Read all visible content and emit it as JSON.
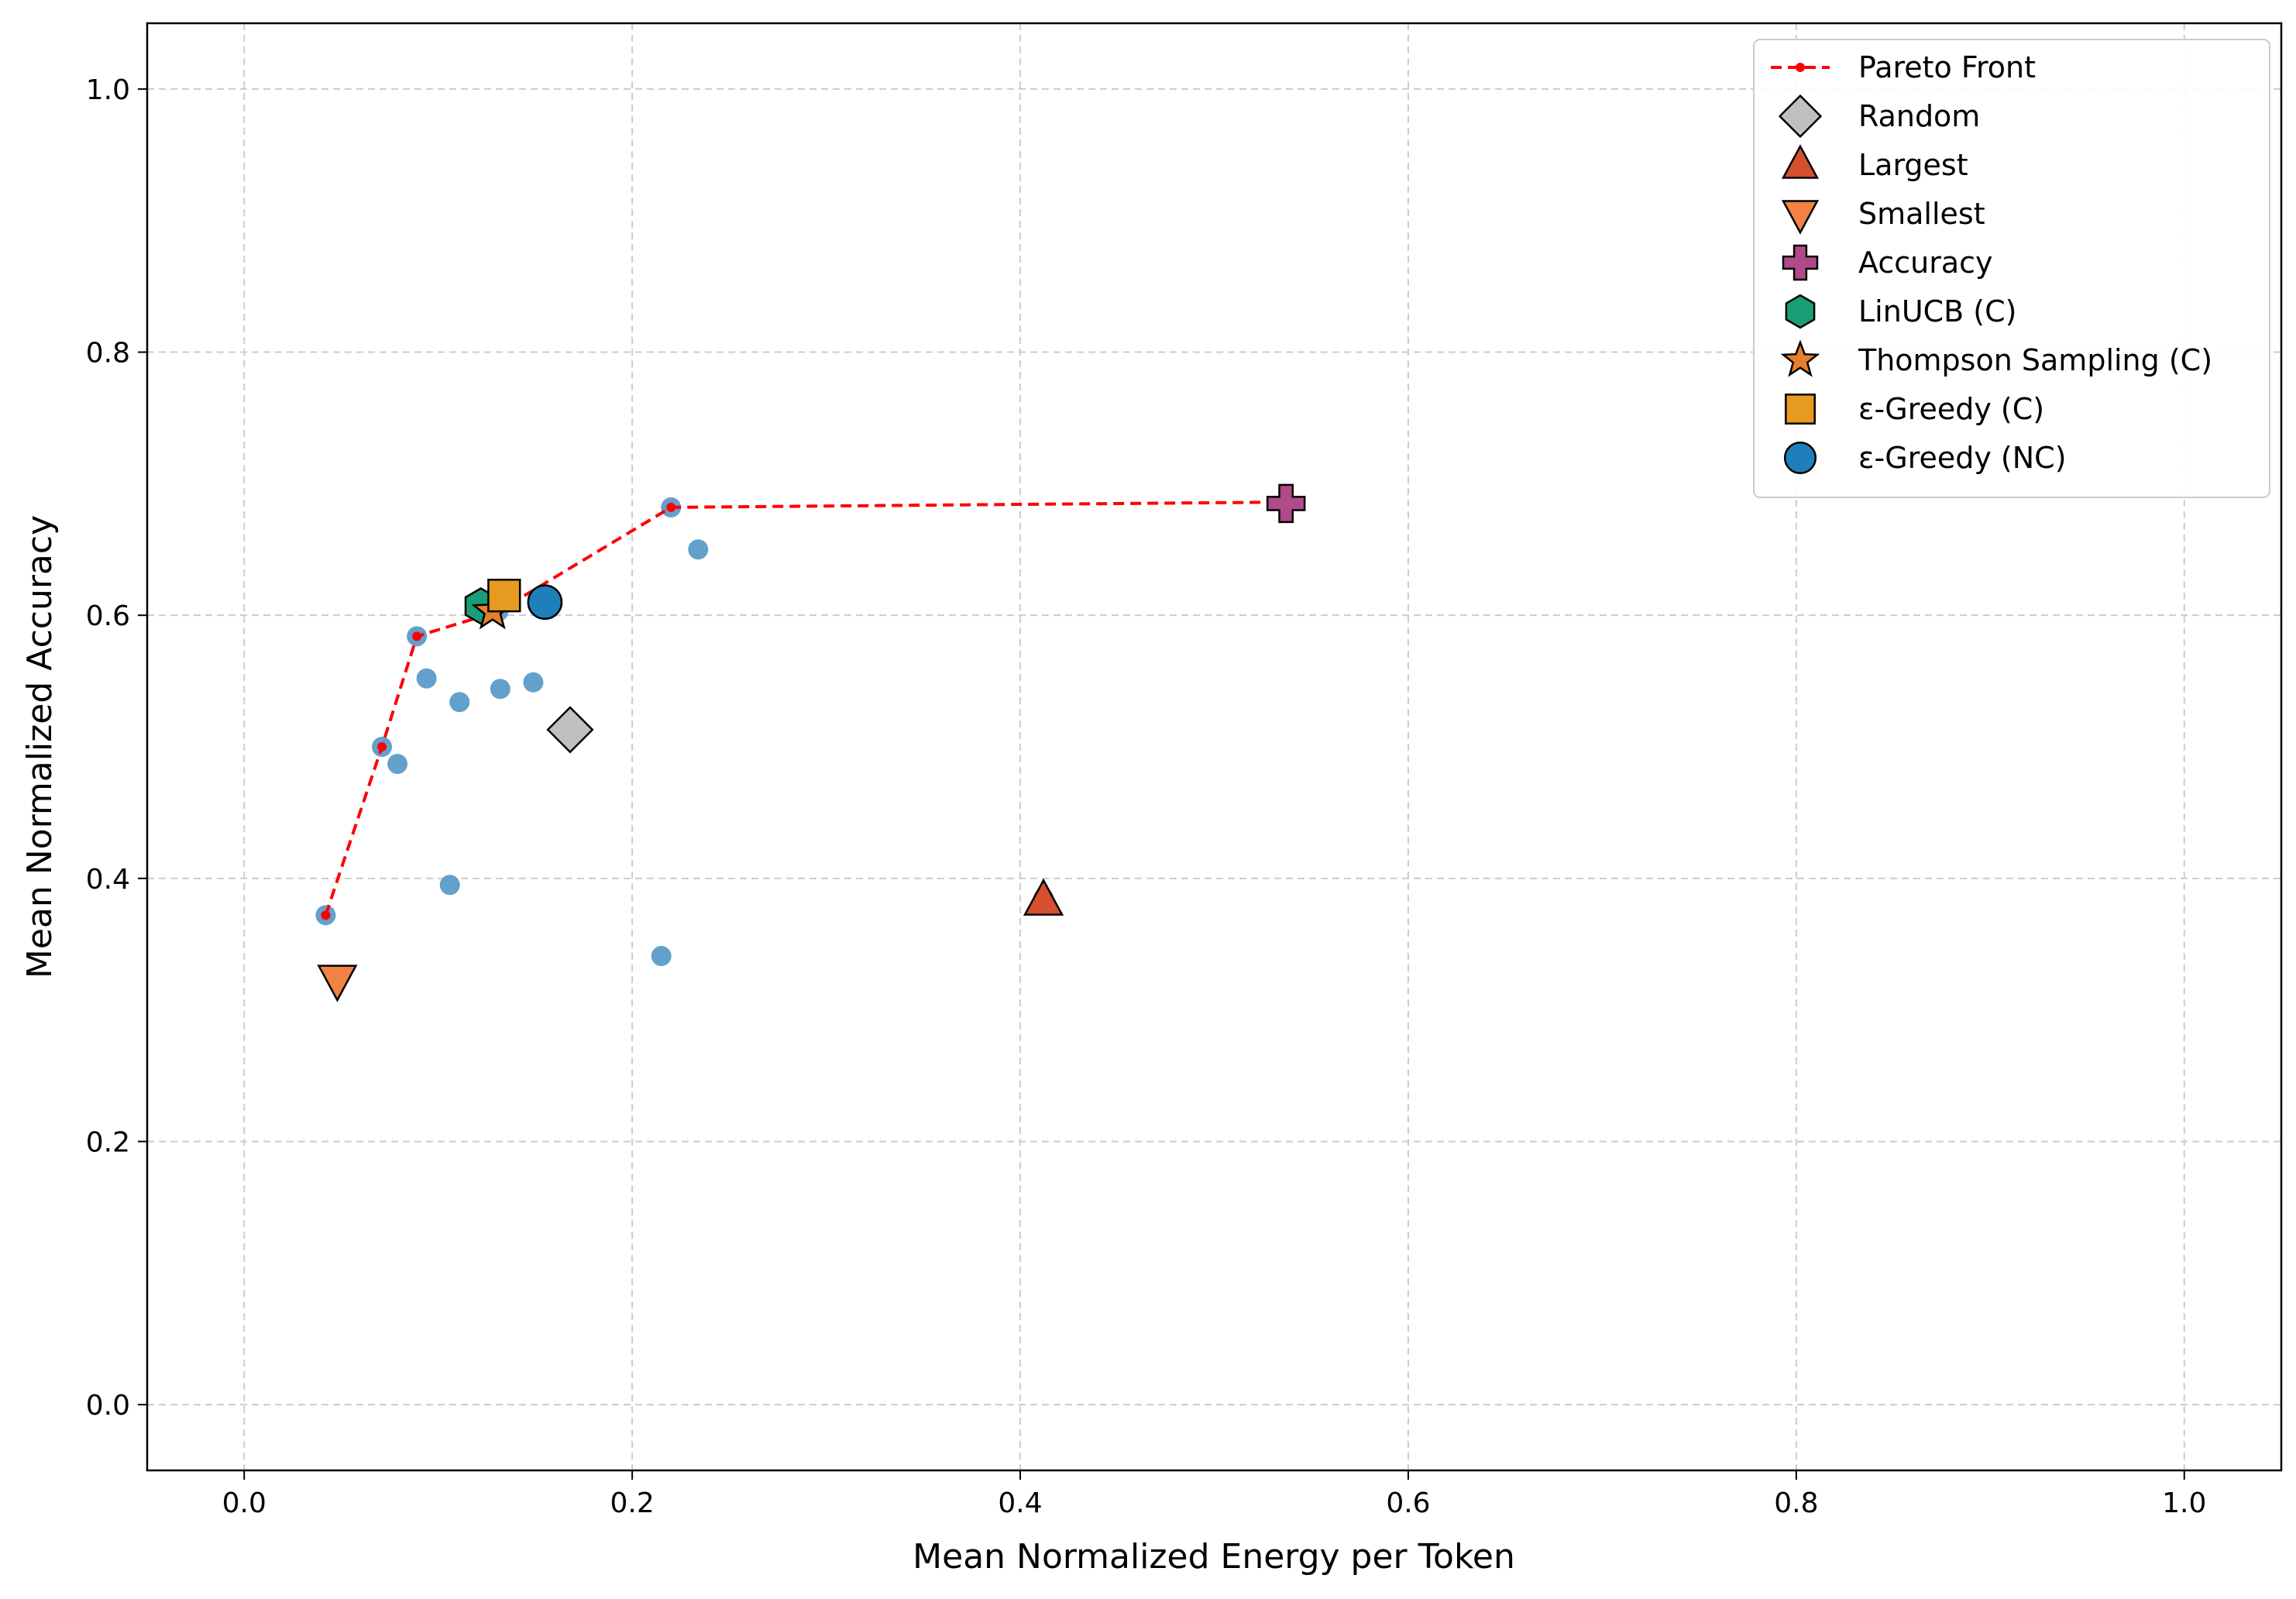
{
  "chart_data": {
    "type": "scatter",
    "title": "",
    "xlabel": "Mean Normalized Energy per Token",
    "ylabel": "Mean Normalized Accuracy",
    "xlim": [
      -0.05,
      1.05
    ],
    "ylim": [
      -0.05,
      1.05
    ],
    "xticks": [
      "0.0",
      "0.2",
      "0.4",
      "0.6",
      "0.8",
      "1.0"
    ],
    "yticks": [
      "0.0",
      "0.2",
      "0.4",
      "0.6",
      "0.8",
      "1.0"
    ],
    "grid": true,
    "legend_position": "top-right",
    "background_points": {
      "color": "#5b9bc9",
      "points": [
        [
          0.042,
          0.372
        ],
        [
          0.048,
          0.322
        ],
        [
          0.071,
          0.5
        ],
        [
          0.079,
          0.487
        ],
        [
          0.089,
          0.584
        ],
        [
          0.094,
          0.552
        ],
        [
          0.106,
          0.395
        ],
        [
          0.111,
          0.534
        ],
        [
          0.131,
          0.603
        ],
        [
          0.132,
          0.544
        ],
        [
          0.149,
          0.549
        ],
        [
          0.215,
          0.341
        ],
        [
          0.22,
          0.682
        ],
        [
          0.234,
          0.65
        ],
        [
          0.412,
          0.385
        ],
        [
          0.537,
          0.686
        ]
      ]
    },
    "series": [
      {
        "name": "Pareto Front",
        "kind": "line",
        "color": "#ff0000",
        "points": [
          [
            0.042,
            0.372
          ],
          [
            0.071,
            0.5
          ],
          [
            0.089,
            0.584
          ],
          [
            0.131,
            0.603
          ],
          [
            0.22,
            0.682
          ],
          [
            0.537,
            0.686
          ]
        ]
      },
      {
        "name": "Random",
        "marker": "diamond",
        "color": "#c0c0c0",
        "points": [
          [
            0.168,
            0.513
          ]
        ]
      },
      {
        "name": "Largest",
        "marker": "triangle-up",
        "color": "#d5502e",
        "points": [
          [
            0.412,
            0.383
          ]
        ]
      },
      {
        "name": "Smallest",
        "marker": "triangle-down",
        "color": "#f08244",
        "points": [
          [
            0.048,
            0.323
          ]
        ]
      },
      {
        "name": "Accuracy",
        "marker": "plus",
        "color": "#b04a88",
        "points": [
          [
            0.537,
            0.685
          ]
        ]
      },
      {
        "name": "LinUCB (C)",
        "marker": "hexagon",
        "color": "#1a9e77",
        "points": [
          [
            0.122,
            0.607
          ]
        ]
      },
      {
        "name": "Thompson Sampling (C)",
        "marker": "star",
        "color": "#e57f2c",
        "points": [
          [
            0.128,
            0.603
          ]
        ]
      },
      {
        "name": "ε-Greedy (C)",
        "marker": "square",
        "color": "#e69a1f",
        "points": [
          [
            0.134,
            0.615
          ]
        ]
      },
      {
        "name": "ε-Greedy (NC)",
        "marker": "circle",
        "color": "#1f7fba",
        "points": [
          [
            0.155,
            0.61
          ]
        ]
      }
    ]
  }
}
